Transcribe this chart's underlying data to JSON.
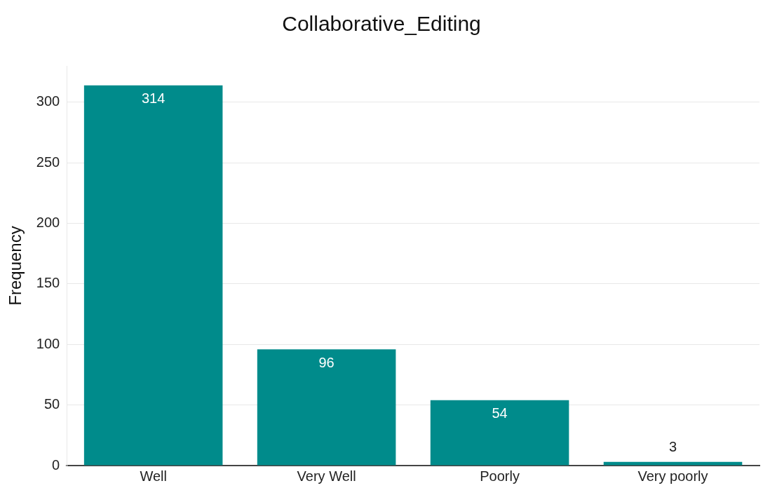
{
  "chart_data": {
    "type": "bar",
    "title": "Collaborative_Editing",
    "ylabel": "Frequency",
    "categories": [
      "Well",
      "Very Well",
      "Poorly",
      "Very poorly"
    ],
    "values": [
      314,
      96,
      54,
      3
    ],
    "color": "#008b8b",
    "ylim": [
      0,
      330
    ],
    "yticks": [
      0,
      50,
      100,
      150,
      200,
      250,
      300
    ],
    "grid": "y",
    "data_labels": true,
    "legend": false
  }
}
